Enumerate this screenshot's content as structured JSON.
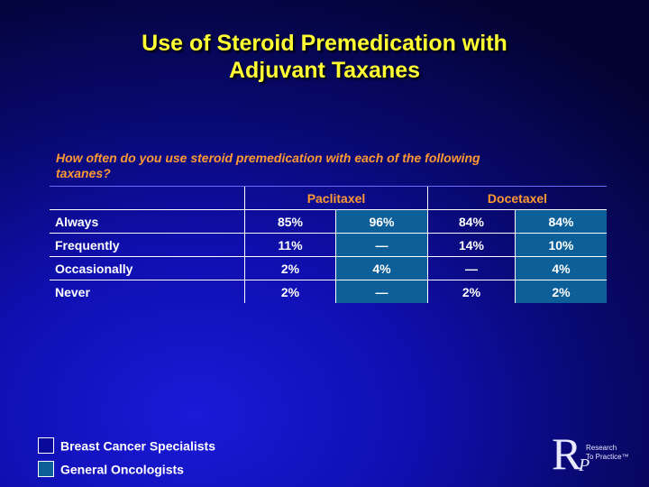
{
  "title": {
    "line1": "Use of Steroid Premedication with",
    "line2": "Adjuvant Taxanes"
  },
  "question": "How often do you use steroid premedication with each of the following taxanes?",
  "table": {
    "groups": [
      "Paclitaxel",
      "Docetaxel"
    ],
    "rows": [
      {
        "label": "Always",
        "values": [
          "85%",
          "96%",
          "84%",
          "84%"
        ]
      },
      {
        "label": "Frequently",
        "values": [
          "11%",
          "—",
          "14%",
          "10%"
        ]
      },
      {
        "label": "Occasionally",
        "values": [
          "2%",
          "4%",
          "—",
          "4%"
        ]
      },
      {
        "label": "Never",
        "values": [
          "2%",
          "—",
          "2%",
          "2%"
        ]
      }
    ]
  },
  "legend": [
    {
      "label": "Breast Cancer Specialists",
      "color": "#0a0a9a"
    },
    {
      "label": "General Oncologists",
      "color": "#0c5f98"
    }
  ],
  "logo": {
    "letter_r": "R",
    "letter_p": "P",
    "line1": "Research",
    "line2": "To Practice™"
  },
  "colors": {
    "title": "#ffff33",
    "accent": "#ff9933",
    "shaded_column": "#0c5f98"
  }
}
